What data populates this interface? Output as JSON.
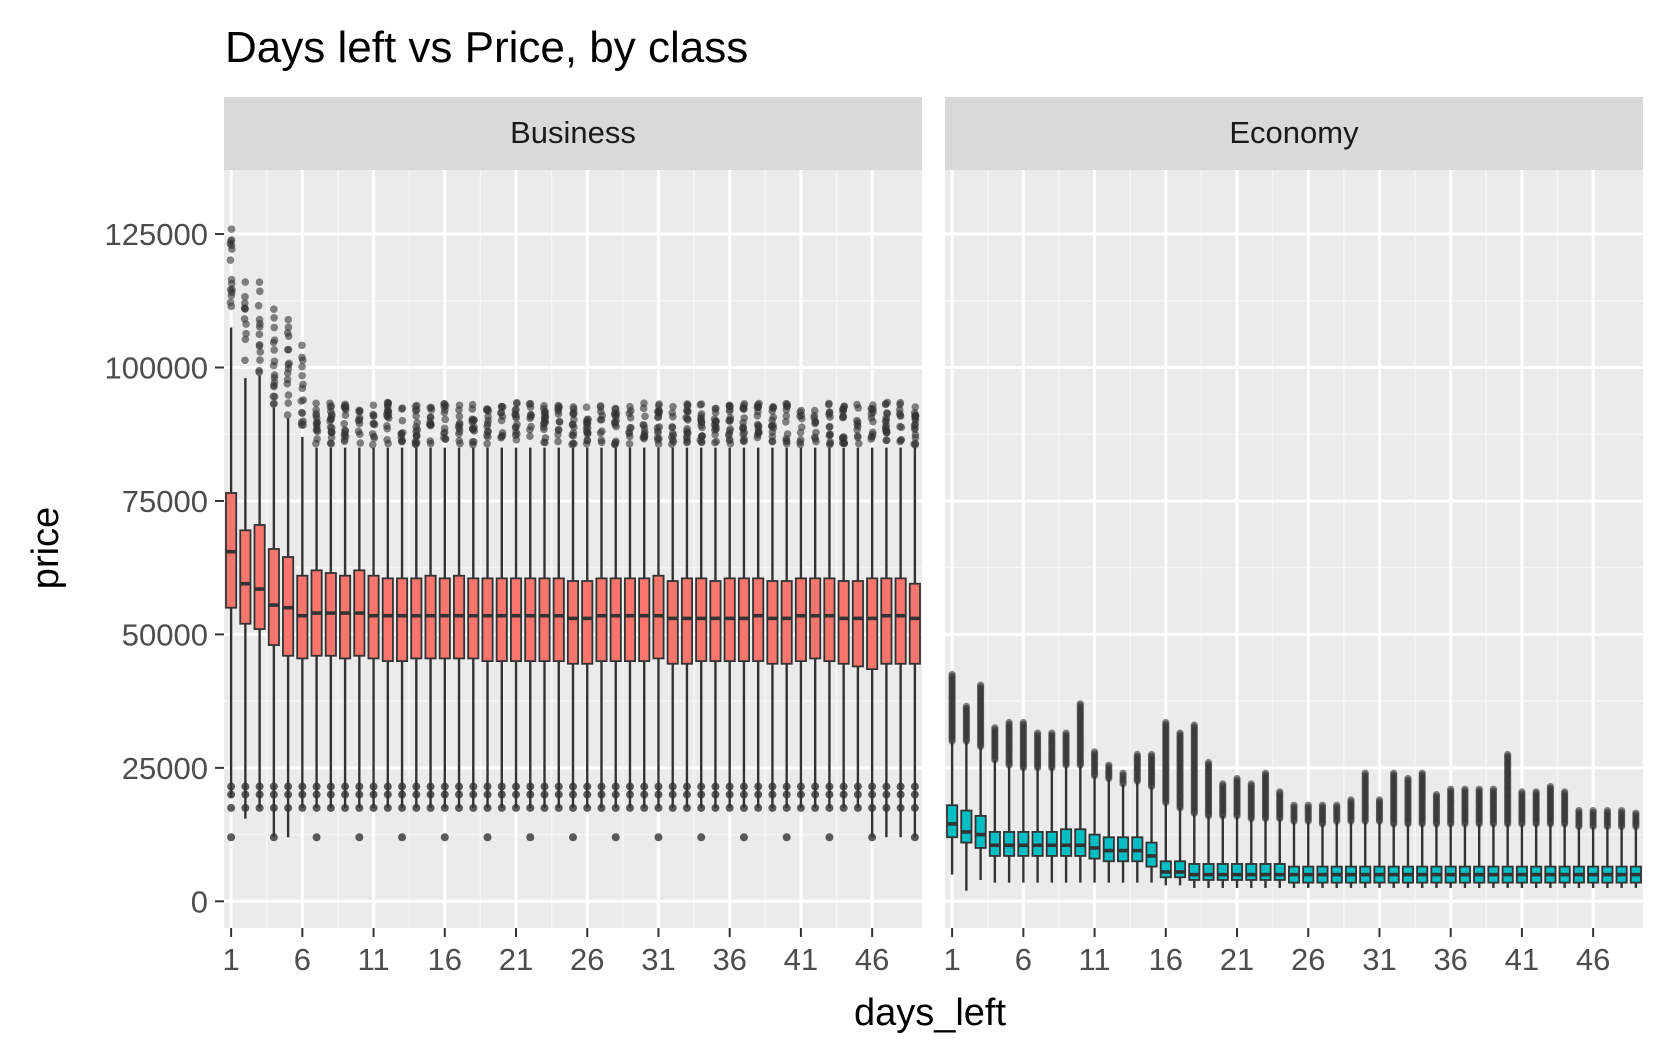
{
  "chart_data": {
    "type": "box",
    "title": "Days left vs Price, by class",
    "xlabel": "days_left",
    "ylabel": "price",
    "ylim": [
      -5000,
      137000
    ],
    "xlim": [
      0.5,
      49.5
    ],
    "y_ticks": [
      0,
      25000,
      50000,
      75000,
      100000,
      125000
    ],
    "y_tick_labels": [
      "0",
      "25000",
      "50000",
      "75000",
      "100000",
      "125000"
    ],
    "x_ticks": [
      1,
      6,
      11,
      16,
      21,
      26,
      31,
      36,
      41,
      46
    ],
    "x_tick_labels": [
      "1",
      "6",
      "11",
      "16",
      "21",
      "26",
      "31",
      "36",
      "41",
      "46"
    ],
    "grid": true,
    "days": [
      1,
      2,
      3,
      4,
      5,
      6,
      7,
      8,
      9,
      10,
      11,
      12,
      13,
      14,
      15,
      16,
      17,
      18,
      19,
      20,
      21,
      22,
      23,
      24,
      25,
      26,
      27,
      28,
      29,
      30,
      31,
      32,
      33,
      34,
      35,
      36,
      37,
      38,
      39,
      40,
      41,
      42,
      43,
      44,
      45,
      46,
      47,
      48,
      49
    ],
    "panels": [
      {
        "label": "Business",
        "fill": "#F8766D",
        "stats": {
          "whisker_low": [
            19500,
            15500,
            17500,
            12000,
            12000,
            17500,
            17500,
            17500,
            17500,
            17500,
            17500,
            17500,
            17500,
            17500,
            17500,
            17500,
            17500,
            17500,
            17500,
            17500,
            17500,
            17500,
            17500,
            17500,
            17500,
            17500,
            17500,
            17500,
            17500,
            17500,
            17500,
            17500,
            17500,
            17500,
            17500,
            17500,
            17500,
            17500,
            17500,
            17500,
            17500,
            17500,
            17500,
            17500,
            17500,
            12000,
            12000,
            12000,
            12000
          ],
          "q1": [
            55000,
            52000,
            51000,
            48000,
            46000,
            45500,
            46000,
            46000,
            45500,
            46000,
            45500,
            45000,
            45000,
            45500,
            45500,
            45500,
            45500,
            45500,
            45000,
            45000,
            45000,
            45000,
            45000,
            45000,
            44500,
            44500,
            45000,
            45000,
            45000,
            45000,
            45500,
            44500,
            44500,
            45000,
            45000,
            45000,
            45000,
            45000,
            44500,
            44500,
            45000,
            45500,
            45000,
            44500,
            44000,
            43500,
            44500,
            44500,
            44500
          ],
          "median": [
            65500,
            59500,
            58500,
            55500,
            55000,
            53500,
            54000,
            54000,
            54000,
            54000,
            53500,
            53500,
            53500,
            53500,
            53500,
            53500,
            53500,
            53500,
            53500,
            53500,
            53500,
            53500,
            53500,
            53500,
            53000,
            53000,
            53500,
            53500,
            53500,
            53500,
            53500,
            53000,
            53000,
            53000,
            53000,
            53000,
            53000,
            53500,
            53000,
            53000,
            53500,
            53500,
            53500,
            53000,
            53000,
            53000,
            53500,
            53500,
            53000
          ],
          "q3": [
            76500,
            69500,
            70500,
            66000,
            64500,
            61000,
            62000,
            61500,
            61000,
            62000,
            61000,
            60500,
            60500,
            60500,
            61000,
            60500,
            61000,
            60500,
            60500,
            60500,
            60500,
            60500,
            60500,
            60500,
            60000,
            60000,
            60500,
            60500,
            60500,
            60500,
            61000,
            60000,
            60500,
            60500,
            60000,
            60500,
            60500,
            60500,
            60000,
            60000,
            60500,
            60500,
            60500,
            60000,
            60000,
            60500,
            60500,
            60500,
            59500
          ],
          "whisker_high": [
            107500,
            98000,
            98500,
            92500,
            90500,
            87000,
            85000,
            85000,
            85000,
            85000,
            85000,
            85000,
            85000,
            85000,
            85000,
            85000,
            85000,
            85000,
            85000,
            85000,
            85000,
            85000,
            85000,
            85000,
            85000,
            85000,
            85000,
            85000,
            85000,
            85000,
            85000,
            85000,
            85000,
            85000,
            85000,
            85000,
            85000,
            85000,
            85000,
            85000,
            85000,
            85000,
            85000,
            85000,
            85000,
            85000,
            85000,
            85000,
            85000
          ]
        }
      },
      {
        "label": "Economy",
        "fill": "#00BFC4",
        "stats": {
          "whisker_low": [
            5000,
            2000,
            4000,
            3500,
            3500,
            3500,
            3500,
            3500,
            3500,
            3500,
            3500,
            3500,
            3500,
            3500,
            3500,
            3000,
            3000,
            2500,
            2500,
            2500,
            2500,
            2500,
            2500,
            2500,
            2500,
            2500,
            2500,
            2500,
            2500,
            2500,
            2500,
            2500,
            2500,
            2500,
            2500,
            2500,
            2500,
            2500,
            2500,
            2500,
            2500,
            2500,
            2500,
            2500,
            2500,
            2500,
            2500,
            2500,
            2500
          ],
          "q1": [
            12000,
            11000,
            10000,
            8500,
            8500,
            8500,
            8500,
            8500,
            8500,
            8500,
            8000,
            7500,
            7500,
            7500,
            6500,
            4500,
            4500,
            4000,
            4000,
            4000,
            4000,
            4000,
            4000,
            4000,
            3500,
            3500,
            3500,
            3500,
            3500,
            3500,
            3500,
            3500,
            3500,
            3500,
            3500,
            3500,
            3500,
            3500,
            3500,
            3500,
            3500,
            3500,
            3500,
            3500,
            3500,
            3500,
            3500,
            3500,
            3500
          ],
          "median": [
            14500,
            13000,
            12500,
            10500,
            10500,
            10500,
            10500,
            10500,
            10500,
            10500,
            10000,
            9500,
            9500,
            9500,
            8500,
            5500,
            5500,
            5000,
            5000,
            5000,
            5000,
            5000,
            5000,
            5000,
            5000,
            5000,
            5000,
            5000,
            5000,
            5000,
            5000,
            5000,
            5000,
            5000,
            5000,
            5000,
            5000,
            5000,
            5000,
            5000,
            5000,
            5000,
            5000,
            5000,
            5000,
            5000,
            5000,
            5000,
            5000
          ],
          "q3": [
            18000,
            17000,
            16000,
            13000,
            13000,
            13000,
            13000,
            13000,
            13500,
            13500,
            12500,
            12000,
            12000,
            12000,
            11000,
            7500,
            7500,
            7000,
            7000,
            7000,
            7000,
            7000,
            7000,
            7000,
            6500,
            6500,
            6500,
            6500,
            6500,
            6500,
            6500,
            6500,
            6500,
            6500,
            6500,
            6500,
            6500,
            6500,
            6500,
            6500,
            6500,
            6500,
            6500,
            6500,
            6500,
            6500,
            6500,
            6500,
            6500
          ],
          "whisker_high": [
            30000,
            30000,
            29000,
            26500,
            25500,
            25000,
            25000,
            25000,
            25500,
            25500,
            23500,
            23000,
            22000,
            22500,
            21500,
            18500,
            17500,
            16500,
            16000,
            16000,
            16000,
            15500,
            15500,
            15500,
            15000,
            15000,
            14500,
            15000,
            15000,
            15000,
            15000,
            14500,
            14500,
            14500,
            14500,
            14500,
            14500,
            14500,
            14500,
            14500,
            14500,
            14500,
            14500,
            14500,
            14000,
            14000,
            14000,
            14000,
            14000
          ],
          "outlier_max": [
            42500,
            36500,
            40500,
            32500,
            33500,
            33500,
            31500,
            31500,
            31500,
            37000,
            28000,
            25500,
            24000,
            27500,
            27500,
            33500,
            31500,
            33000,
            26000,
            22000,
            23000,
            22000,
            24000,
            20500,
            18000,
            18000,
            18000,
            18000,
            19000,
            24000,
            19000,
            24000,
            23000,
            24000,
            20000,
            21000,
            21000,
            21000,
            21000,
            27500,
            20500,
            20500,
            21500,
            20500,
            17000,
            17000,
            17000,
            17000,
            16500
          ]
        }
      }
    ]
  }
}
